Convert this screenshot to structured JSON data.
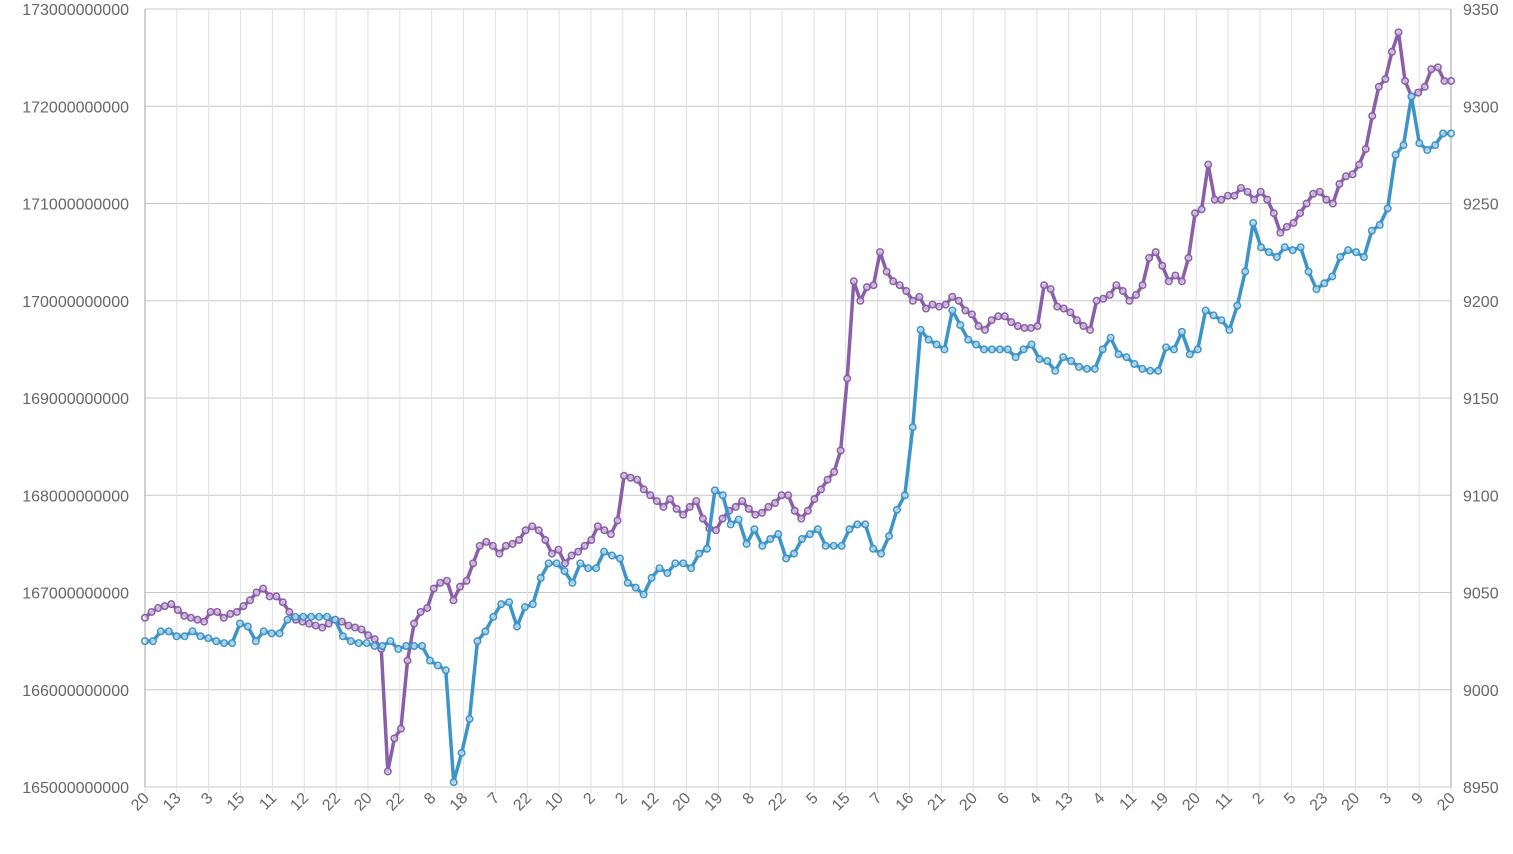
{
  "chart_data": {
    "type": "line",
    "x_tick_labels": [
      "20",
      "13",
      "3",
      "15",
      "11",
      "12",
      "22",
      "20",
      "22",
      "8",
      "18",
      "7",
      "22",
      "10",
      "2",
      "2",
      "12",
      "20",
      "19",
      "8",
      "22",
      "5",
      "15",
      "7",
      "16",
      "21",
      "20",
      "6",
      "4",
      "13",
      "4",
      "11",
      "19",
      "20",
      "11",
      "2",
      "5",
      "23",
      "20",
      "3",
      "9",
      "20"
    ],
    "y_left": {
      "min": 165000000000,
      "max": 173000000000,
      "step": 1000000000,
      "tick_labels": [
        "165000000000",
        "166000000000",
        "167000000000",
        "168000000000",
        "169000000000",
        "170000000000",
        "171000000000",
        "172000000000",
        "173000000000"
      ]
    },
    "y_right": {
      "min": 8950,
      "max": 9350,
      "step": 50,
      "tick_labels": [
        "8950",
        "9000",
        "9050",
        "9100",
        "9150",
        "9200",
        "9250",
        "9300",
        "9350"
      ]
    },
    "grid": true,
    "legend": "none",
    "series": [
      {
        "axis": "left",
        "color": "#3d94c8",
        "markers": true,
        "values": [
          166500000000,
          166500000000,
          166600000000,
          166600000000,
          166550000000,
          166550000000,
          166600000000,
          166550000000,
          166530000000,
          166500000000,
          166480000000,
          166480000000,
          166680000000,
          166650000000,
          166500000000,
          166600000000,
          166580000000,
          166580000000,
          166720000000,
          166750000000,
          166750000000,
          166750000000,
          166750000000,
          166750000000,
          166720000000,
          166550000000,
          166500000000,
          166480000000,
          166480000000,
          166450000000,
          166450000000,
          166500000000,
          166420000000,
          166450000000,
          166450000000,
          166450000000,
          166300000000,
          166250000000,
          166200000000,
          165050000000,
          165350000000,
          165700000000,
          166500000000,
          166600000000,
          166750000000,
          166880000000,
          166900000000,
          166650000000,
          166850000000,
          166880000000,
          167150000000,
          167300000000,
          167300000000,
          167220000000,
          167100000000,
          167300000000,
          167250000000,
          167250000000,
          167420000000,
          167380000000,
          167350000000,
          167100000000,
          167050000000,
          166980000000,
          167150000000,
          167250000000,
          167200000000,
          167300000000,
          167300000000,
          167250000000,
          167400000000,
          167450000000,
          168050000000,
          168000000000,
          167700000000,
          167750000000,
          167500000000,
          167650000000,
          167480000000,
          167550000000,
          167600000000,
          167350000000,
          167400000000,
          167550000000,
          167600000000,
          167650000000,
          167480000000,
          167480000000,
          167480000000,
          167650000000,
          167700000000,
          167700000000,
          167450000000,
          167400000000,
          167580000000,
          167850000000,
          168000000000,
          168700000000,
          169700000000,
          169600000000,
          169550000000,
          169500000000,
          169900000000,
          169750000000,
          169600000000,
          169550000000,
          169500000000,
          169500000000,
          169500000000,
          169500000000,
          169420000000,
          169500000000,
          169550000000,
          169400000000,
          169380000000,
          169280000000,
          169420000000,
          169380000000,
          169320000000,
          169300000000,
          169300000000,
          169500000000,
          169620000000,
          169450000000,
          169420000000,
          169350000000,
          169300000000,
          169280000000,
          169280000000,
          169520000000,
          169500000000,
          169680000000,
          169450000000,
          169500000000,
          169900000000,
          169850000000,
          169800000000,
          169700000000,
          169950000000,
          170300000000,
          170800000000,
          170550000000,
          170500000000,
          170450000000,
          170550000000,
          170520000000,
          170550000000,
          170300000000,
          170120000000,
          170180000000,
          170250000000,
          170450000000,
          170520000000,
          170500000000,
          170450000000,
          170720000000,
          170780000000,
          170950000000,
          171500000000,
          171600000000,
          172100000000,
          171620000000,
          171550000000,
          171600000000,
          171720000000,
          171720000000
        ]
      },
      {
        "axis": "right",
        "color": "#8a5ea8",
        "markers": true,
        "values": [
          9037,
          9040,
          9042,
          9043,
          9044,
          9041,
          9038,
          9037,
          9036,
          9035,
          9040,
          9040,
          9037,
          9039,
          9040,
          9043,
          9046,
          9050,
          9052,
          9048,
          9048,
          9045,
          9040,
          9036,
          9035,
          9034,
          9033,
          9032,
          9034,
          9036,
          9035,
          9033,
          9032,
          9031,
          9028,
          9026,
          9021,
          8958,
          8975,
          8980,
          9015,
          9034,
          9040,
          9042,
          9052,
          9055,
          9056,
          9046,
          9053,
          9056,
          9065,
          9074,
          9076,
          9074,
          9070,
          9074,
          9075,
          9077,
          9082,
          9084,
          9082,
          9077,
          9070,
          9072,
          9065,
          9069,
          9071,
          9074,
          9077,
          9084,
          9082,
          9080,
          9087,
          9110,
          9109,
          9108,
          9103,
          9100,
          9097,
          9094,
          9098,
          9093,
          9090,
          9094,
          9097,
          9088,
          9083,
          9082,
          9088,
          9092,
          9094,
          9097,
          9093,
          9090,
          9091,
          9094,
          9096,
          9100,
          9100,
          9092,
          9088,
          9092,
          9098,
          9103,
          9108,
          9112,
          9123,
          9160,
          9210,
          9200,
          9207,
          9208,
          9225,
          9215,
          9210,
          9208,
          9205,
          9200,
          9202,
          9196,
          9198,
          9197,
          9198,
          9202,
          9200,
          9195,
          9193,
          9187,
          9185,
          9190,
          9192,
          9192,
          9189,
          9187,
          9186,
          9186,
          9187,
          9208,
          9206,
          9197,
          9196,
          9194,
          9190,
          9187,
          9185,
          9200,
          9201,
          9203,
          9208,
          9205,
          9200,
          9203,
          9208,
          9222,
          9225,
          9218,
          9210,
          9213,
          9210,
          9222,
          9245,
          9247,
          9270,
          9252,
          9252,
          9254,
          9254,
          9258,
          9256,
          9252,
          9256,
          9252,
          9245,
          9235,
          9238,
          9240,
          9245,
          9250,
          9255,
          9256,
          9252,
          9250,
          9260,
          9264,
          9265,
          9270,
          9278,
          9295,
          9310,
          9314,
          9328,
          9338,
          9313,
          9305,
          9307,
          9310,
          9319,
          9320,
          9313,
          9313
        ]
      }
    ]
  }
}
